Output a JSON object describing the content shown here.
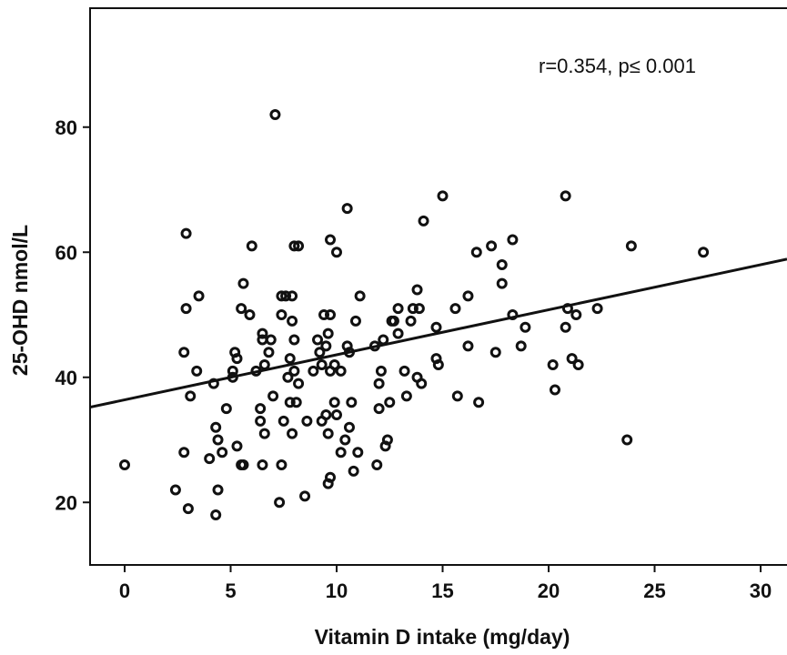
{
  "chart_data": {
    "type": "scatter",
    "xlabel": "Vitamin D intake (mg/day)",
    "ylabel": "25-OHD nmol/L",
    "annotation": "r=0.354, p≤ 0.001",
    "xlim": [
      -1.7,
      31.5
    ],
    "ylim": [
      10,
      100
    ],
    "x_ticks": [
      0,
      5,
      10,
      15,
      20,
      25,
      30
    ],
    "y_ticks": [
      20,
      40,
      60,
      80
    ],
    "grid": false,
    "legend": "none",
    "trendline": {
      "intercept": 36.4,
      "slope": 0.72
    },
    "points": [
      [
        0,
        26
      ],
      [
        2.4,
        22
      ],
      [
        2.8,
        28
      ],
      [
        2.8,
        44
      ],
      [
        2.9,
        63
      ],
      [
        2.9,
        51
      ],
      [
        3.0,
        19
      ],
      [
        3.1,
        37
      ],
      [
        3.4,
        41
      ],
      [
        3.5,
        53
      ],
      [
        4.0,
        27
      ],
      [
        4.2,
        39
      ],
      [
        4.3,
        32
      ],
      [
        4.3,
        18
      ],
      [
        4.4,
        30
      ],
      [
        4.4,
        22
      ],
      [
        4.6,
        28
      ],
      [
        4.8,
        35
      ],
      [
        5.1,
        40
      ],
      [
        5.1,
        41
      ],
      [
        5.2,
        44
      ],
      [
        5.3,
        43
      ],
      [
        5.3,
        29
      ],
      [
        5.5,
        26
      ],
      [
        5.5,
        51
      ],
      [
        5.6,
        26
      ],
      [
        5.6,
        55
      ],
      [
        5.9,
        50
      ],
      [
        6.0,
        61
      ],
      [
        6.2,
        41
      ],
      [
        6.4,
        35
      ],
      [
        6.4,
        33
      ],
      [
        6.5,
        47
      ],
      [
        6.5,
        46
      ],
      [
        6.5,
        26
      ],
      [
        6.6,
        31
      ],
      [
        6.6,
        42
      ],
      [
        6.8,
        44
      ],
      [
        6.9,
        46
      ],
      [
        7.0,
        37
      ],
      [
        7.1,
        82
      ],
      [
        7.3,
        20
      ],
      [
        7.4,
        26
      ],
      [
        7.4,
        53
      ],
      [
        7.4,
        50
      ],
      [
        7.5,
        33
      ],
      [
        7.6,
        53
      ],
      [
        7.7,
        40
      ],
      [
        7.8,
        43
      ],
      [
        7.8,
        36
      ],
      [
        7.9,
        31
      ],
      [
        7.9,
        49
      ],
      [
        7.9,
        53
      ],
      [
        8.0,
        46
      ],
      [
        8.0,
        41
      ],
      [
        8.0,
        61
      ],
      [
        8.1,
        36
      ],
      [
        8.2,
        61
      ],
      [
        8.2,
        39
      ],
      [
        8.5,
        21
      ],
      [
        8.6,
        33
      ],
      [
        8.9,
        41
      ],
      [
        9.1,
        46
      ],
      [
        9.2,
        44
      ],
      [
        9.3,
        33
      ],
      [
        9.3,
        42
      ],
      [
        9.4,
        50
      ],
      [
        9.5,
        45
      ],
      [
        9.5,
        34
      ],
      [
        9.6,
        47
      ],
      [
        9.6,
        31
      ],
      [
        9.6,
        23
      ],
      [
        9.7,
        41
      ],
      [
        9.7,
        62
      ],
      [
        9.7,
        50
      ],
      [
        9.7,
        24
      ],
      [
        9.9,
        42
      ],
      [
        9.9,
        36
      ],
      [
        10.0,
        34
      ],
      [
        10.0,
        60
      ],
      [
        10.2,
        28
      ],
      [
        10.2,
        41
      ],
      [
        10.4,
        30
      ],
      [
        10.5,
        45
      ],
      [
        10.5,
        67
      ],
      [
        10.6,
        44
      ],
      [
        10.6,
        32
      ],
      [
        10.7,
        36
      ],
      [
        10.8,
        25
      ],
      [
        10.9,
        49
      ],
      [
        11.0,
        28
      ],
      [
        11.1,
        53
      ],
      [
        11.8,
        45
      ],
      [
        11.9,
        26
      ],
      [
        12.0,
        35
      ],
      [
        12.0,
        39
      ],
      [
        12.1,
        41
      ],
      [
        12.2,
        46
      ],
      [
        12.3,
        29
      ],
      [
        12.4,
        30
      ],
      [
        12.5,
        36
      ],
      [
        12.6,
        49
      ],
      [
        12.7,
        49
      ],
      [
        12.9,
        51
      ],
      [
        12.9,
        47
      ],
      [
        13.2,
        41
      ],
      [
        13.3,
        37
      ],
      [
        13.5,
        49
      ],
      [
        13.6,
        51
      ],
      [
        13.8,
        54
      ],
      [
        13.8,
        40
      ],
      [
        13.9,
        51
      ],
      [
        14.0,
        39
      ],
      [
        14.1,
        65
      ],
      [
        14.7,
        48
      ],
      [
        14.7,
        43
      ],
      [
        14.8,
        42
      ],
      [
        15.0,
        69
      ],
      [
        15.6,
        51
      ],
      [
        15.7,
        37
      ],
      [
        16.2,
        53
      ],
      [
        16.2,
        45
      ],
      [
        16.6,
        60
      ],
      [
        16.7,
        36
      ],
      [
        17.3,
        61
      ],
      [
        17.5,
        44
      ],
      [
        17.8,
        58
      ],
      [
        17.8,
        55
      ],
      [
        18.3,
        50
      ],
      [
        18.3,
        62
      ],
      [
        18.7,
        45
      ],
      [
        18.9,
        48
      ],
      [
        20.2,
        42
      ],
      [
        20.3,
        38
      ],
      [
        20.8,
        48
      ],
      [
        20.8,
        69
      ],
      [
        20.9,
        51
      ],
      [
        21.1,
        43
      ],
      [
        21.3,
        50
      ],
      [
        21.4,
        42
      ],
      [
        22.3,
        51
      ],
      [
        23.7,
        30
      ],
      [
        23.9,
        61
      ],
      [
        27.3,
        60
      ]
    ]
  }
}
